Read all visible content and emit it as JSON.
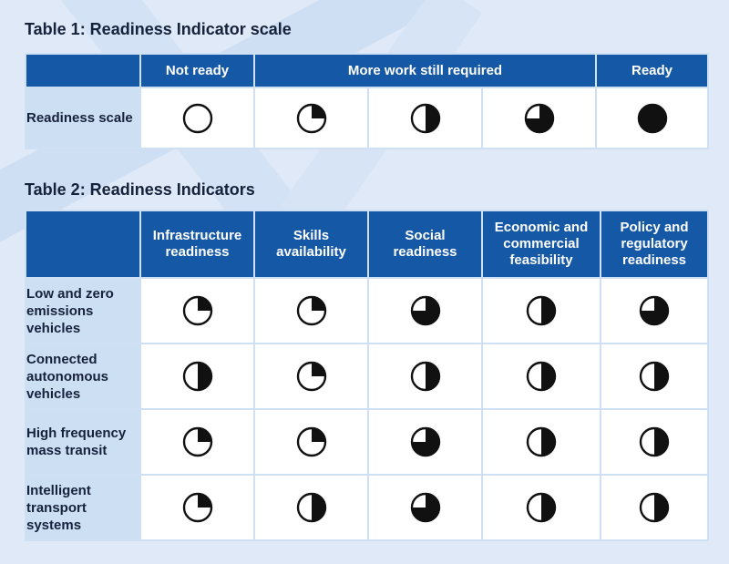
{
  "table1": {
    "title": "Table 1: Readiness Indicator scale",
    "headers": [
      "Not ready",
      "More work still required",
      "Ready"
    ],
    "row_label": "Readiness scale",
    "scale_fills": [
      0,
      0.25,
      0.5,
      0.75,
      1
    ]
  },
  "table2": {
    "title": "Table 2: Readiness Indicators",
    "headers": [
      "Infrastructure readiness",
      "Skills availability",
      "Social readiness",
      "Economic and commercial feasibility",
      "Policy and regulatory readiness"
    ],
    "rows": [
      {
        "label": "Low and zero emissions vehicles",
        "fills": [
          0.25,
          0.25,
          0.75,
          0.5,
          0.75
        ]
      },
      {
        "label": "Connected autonomous vehicles",
        "fills": [
          0.5,
          0.25,
          0.5,
          0.5,
          0.5
        ]
      },
      {
        "label": "High frequency mass transit",
        "fills": [
          0.25,
          0.25,
          0.75,
          0.5,
          0.5
        ]
      },
      {
        "label": "Intelligent transport systems",
        "fills": [
          0.25,
          0.5,
          0.75,
          0.5,
          0.5
        ]
      }
    ]
  },
  "colors": {
    "header_bg": "#1558a6",
    "row_label_bg": "#cddff3",
    "page_bg": "#dfe9f7",
    "indicator": "#111111"
  }
}
